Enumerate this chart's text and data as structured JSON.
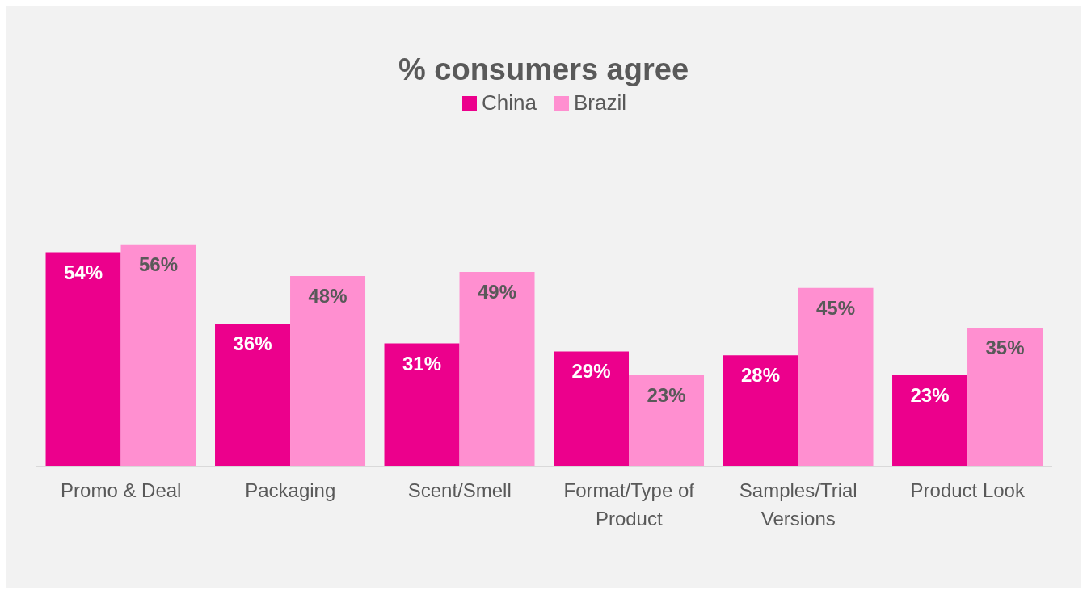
{
  "chart_data": {
    "type": "bar",
    "title": "% consumers agree",
    "categories": [
      "Promo & Deal",
      "Packaging",
      "Scent/Smell",
      "Format/Type of Product",
      "Samples/Trial Versions",
      "Product Look"
    ],
    "series": [
      {
        "name": "China",
        "color": "#ec008c",
        "values": [
          54,
          36,
          31,
          29,
          28,
          23
        ],
        "value_labels": [
          "54%",
          "36%",
          "31%",
          "29%",
          "28%",
          "23%"
        ]
      },
      {
        "name": "Brazil",
        "color": "#ff8fd0",
        "values": [
          56,
          48,
          49,
          23,
          45,
          35
        ],
        "value_labels": [
          "56%",
          "48%",
          "49%",
          "23%",
          "45%",
          "35%"
        ]
      }
    ],
    "legend": "top",
    "grid": false
  }
}
